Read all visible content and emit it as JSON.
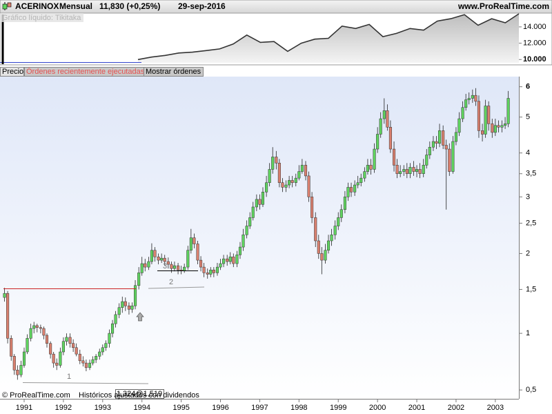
{
  "header": {
    "symbol": "ACERINOX",
    "period": "Mensual",
    "price": "11,830 (+0,25%)",
    "date": "29-sep-2016",
    "site": "www.ProRealTime.com"
  },
  "tabs": [
    "Precio",
    "Órdenes recientemente ejecutadas",
    "Mostrar órdenes"
  ],
  "footer": {
    "copyright": "© ProRealTime.com",
    "note": "Históricos ajustados con dividendos"
  },
  "chart_data": [
    {
      "type": "line",
      "title": "Gráfico líquido: Tikitaka",
      "color": "#333333",
      "values": [
        10000,
        10300,
        10500,
        10800,
        10900,
        11100,
        11300,
        11900,
        13000,
        12100,
        12200,
        11000,
        12000,
        12500,
        12600,
        14100,
        13800,
        14300,
        12800,
        13200,
        13800,
        13600,
        14700,
        15000,
        15500,
        14200,
        15000,
        14500,
        15600
      ],
      "ylim": [
        9600,
        15600
      ],
      "yticks": [
        {
          "value": 10000,
          "label": "10.000"
        },
        {
          "value": 12000,
          "label": "12.000"
        },
        {
          "value": 14000,
          "label": "14.000"
        }
      ]
    },
    {
      "type": "candlestick",
      "yscale": "log1p",
      "up_color": "#5fd35f",
      "down_color": "#d9806f",
      "x": [
        1990.5,
        1990.58,
        1990.67,
        1990.75,
        1990.83,
        1990.92,
        1991,
        1991.08,
        1991.17,
        1991.25,
        1991.33,
        1991.42,
        1991.5,
        1991.58,
        1991.67,
        1991.75,
        1991.83,
        1991.92,
        1992,
        1992.08,
        1992.17,
        1992.25,
        1992.33,
        1992.42,
        1992.5,
        1992.58,
        1992.67,
        1992.75,
        1992.83,
        1992.92,
        1993,
        1993.08,
        1993.17,
        1993.25,
        1993.33,
        1993.42,
        1993.5,
        1993.58,
        1993.67,
        1993.75,
        1993.83,
        1993.92,
        1994,
        1994.08,
        1994.17,
        1994.25,
        1994.33,
        1994.42,
        1994.5,
        1994.58,
        1994.67,
        1994.75,
        1994.83,
        1994.92,
        1995,
        1995.08,
        1995.17,
        1995.25,
        1995.33,
        1995.42,
        1995.5,
        1995.58,
        1995.67,
        1995.75,
        1995.83,
        1995.92,
        1996,
        1996.08,
        1996.17,
        1996.25,
        1996.33,
        1996.42,
        1996.5,
        1996.58,
        1996.67,
        1996.75,
        1996.83,
        1996.92,
        1997,
        1997.08,
        1997.17,
        1997.25,
        1997.33,
        1997.42,
        1997.5,
        1997.58,
        1997.67,
        1997.75,
        1997.83,
        1997.92,
        1998,
        1998.08,
        1998.17,
        1998.25,
        1998.33,
        1998.42,
        1998.5,
        1998.58,
        1998.67,
        1998.75,
        1998.83,
        1998.92,
        1999,
        1999.08,
        1999.17,
        1999.25,
        1999.33,
        1999.42,
        1999.5,
        1999.58,
        1999.67,
        1999.75,
        1999.83,
        1999.92,
        2000,
        2000.08,
        2000.17,
        2000.25,
        2000.33,
        2000.42,
        2000.5,
        2000.58,
        2000.67,
        2000.75,
        2000.83,
        2000.92,
        2001,
        2001.08,
        2001.17,
        2001.25,
        2001.33,
        2001.42,
        2001.5,
        2001.58,
        2001.67,
        2001.75,
        2001.83,
        2001.92,
        2002,
        2002.08,
        2002.17,
        2002.25,
        2002.33,
        2002.42,
        2002.5,
        2002.58,
        2002.67,
        2002.75,
        2002.83,
        2002.92,
        2003,
        2003.08,
        2003.17,
        2003.25,
        2003.33
      ],
      "open": [
        1.4,
        1.45,
        0.95,
        0.78,
        0.66,
        0.62,
        0.7,
        0.82,
        0.95,
        1.05,
        1.08,
        1.06,
        1.05,
        0.98,
        0.9,
        0.8,
        0.72,
        0.7,
        0.82,
        0.92,
        0.96,
        0.9,
        0.86,
        0.8,
        0.74,
        0.72,
        0.68,
        0.72,
        0.75,
        0.78,
        0.82,
        0.86,
        0.9,
        1.0,
        1.1,
        1.2,
        1.28,
        1.35,
        1.3,
        1.26,
        1.3,
        1.55,
        1.72,
        1.85,
        1.8,
        1.88,
        2.05,
        1.95,
        1.9,
        1.93,
        1.88,
        1.84,
        1.78,
        1.82,
        1.76,
        1.75,
        1.8,
        2.05,
        2.25,
        2.15,
        1.9,
        1.8,
        1.72,
        1.7,
        1.76,
        1.72,
        1.8,
        1.85,
        1.92,
        1.88,
        1.95,
        1.85,
        1.98,
        2.1,
        2.3,
        2.45,
        2.6,
        2.8,
        2.95,
        2.85,
        3.1,
        3.3,
        3.6,
        3.9,
        3.75,
        3.3,
        3.2,
        3.25,
        3.35,
        3.3,
        3.4,
        3.55,
        3.7,
        3.45,
        3.0,
        2.6,
        2.2,
        2.0,
        1.9,
        2.05,
        2.2,
        2.3,
        2.45,
        2.6,
        2.75,
        3.0,
        3.2,
        3.1,
        3.25,
        3.3,
        3.4,
        3.55,
        3.7,
        3.6,
        4.1,
        4.5,
        4.95,
        5.2,
        4.7,
        4.1,
        3.7,
        3.5,
        3.55,
        3.6,
        3.5,
        3.65,
        3.55,
        3.6,
        3.5,
        3.7,
        3.95,
        4.15,
        4.3,
        4.25,
        4.6,
        4.2,
        4.1,
        3.55,
        4.3,
        4.55,
        4.95,
        5.3,
        5.55,
        5.6,
        5.7,
        5.5,
        4.6,
        4.5,
        5.35,
        4.8,
        4.55,
        4.75,
        4.7,
        4.75,
        4.8
      ],
      "high": [
        1.52,
        1.48,
        0.98,
        0.8,
        0.7,
        0.74,
        0.86,
        0.99,
        1.1,
        1.12,
        1.1,
        1.09,
        1.07,
        1.0,
        0.92,
        0.82,
        0.76,
        0.86,
        0.96,
        1.0,
        1.0,
        0.94,
        0.9,
        0.84,
        0.78,
        0.75,
        0.75,
        0.78,
        0.8,
        0.85,
        0.89,
        0.93,
        1.04,
        1.14,
        1.24,
        1.33,
        1.41,
        1.4,
        1.34,
        1.34,
        1.62,
        1.8,
        1.95,
        1.92,
        1.95,
        2.16,
        2.1,
        2.0,
        2.0,
        1.98,
        1.94,
        1.88,
        1.88,
        1.86,
        1.82,
        1.85,
        2.12,
        2.4,
        2.32,
        2.2,
        1.96,
        1.86,
        1.78,
        1.8,
        1.8,
        1.86,
        1.92,
        1.98,
        1.98,
        2.02,
        2.0,
        2.04,
        2.18,
        2.4,
        2.55,
        2.7,
        2.9,
        3.05,
        3.05,
        3.2,
        3.45,
        3.75,
        4.15,
        4.05,
        3.85,
        3.4,
        3.35,
        3.45,
        3.45,
        3.5,
        3.7,
        3.85,
        3.8,
        3.55,
        3.1,
        2.7,
        2.3,
        2.1,
        2.15,
        2.3,
        2.4,
        2.55,
        2.7,
        2.85,
        3.12,
        3.3,
        3.3,
        3.35,
        3.45,
        3.5,
        3.65,
        3.85,
        3.85,
        4.25,
        4.7,
        5.15,
        5.6,
        5.4,
        4.9,
        4.3,
        3.85,
        3.7,
        3.7,
        3.75,
        3.75,
        3.8,
        3.7,
        3.75,
        3.85,
        4.1,
        4.3,
        4.45,
        4.45,
        4.8,
        4.75,
        4.35,
        4.25,
        4.45,
        4.7,
        5.15,
        5.5,
        5.75,
        5.8,
        5.9,
        5.95,
        5.7,
        4.8,
        5.55,
        5.5,
        4.95,
        4.95,
        4.9,
        4.9,
        5.0,
        5.85
      ],
      "low": [
        1.35,
        0.9,
        0.74,
        0.62,
        0.58,
        0.6,
        0.68,
        0.8,
        0.92,
        1.0,
        1.01,
        1.0,
        0.94,
        0.86,
        0.76,
        0.68,
        0.66,
        0.68,
        0.79,
        0.88,
        0.86,
        0.82,
        0.78,
        0.71,
        0.69,
        0.65,
        0.66,
        0.7,
        0.72,
        0.75,
        0.79,
        0.83,
        0.86,
        0.96,
        1.06,
        1.16,
        1.22,
        1.24,
        1.2,
        1.22,
        1.26,
        1.5,
        1.68,
        1.74,
        1.76,
        1.84,
        1.88,
        1.84,
        1.86,
        1.82,
        1.78,
        1.72,
        1.74,
        1.7,
        1.7,
        1.72,
        1.76,
        2.0,
        2.08,
        1.84,
        1.74,
        1.66,
        1.64,
        1.66,
        1.66,
        1.68,
        1.76,
        1.8,
        1.82,
        1.84,
        1.8,
        1.8,
        1.92,
        2.04,
        2.24,
        2.4,
        2.55,
        2.72,
        2.75,
        2.8,
        3.0,
        3.22,
        3.5,
        3.6,
        3.2,
        3.1,
        3.1,
        3.18,
        3.2,
        3.22,
        3.35,
        3.5,
        3.35,
        2.9,
        2.5,
        2.1,
        1.92,
        1.7,
        1.85,
        2.0,
        2.12,
        2.22,
        2.38,
        2.52,
        2.68,
        2.92,
        3.0,
        3.02,
        3.18,
        3.22,
        3.32,
        3.48,
        3.48,
        3.52,
        4.0,
        4.4,
        4.8,
        4.6,
        4.0,
        3.55,
        3.4,
        3.42,
        3.45,
        3.4,
        3.4,
        3.45,
        3.42,
        3.4,
        3.42,
        3.62,
        3.85,
        4.05,
        4.1,
        4.15,
        4.1,
        2.75,
        3.45,
        3.5,
        4.2,
        4.45,
        4.85,
        5.2,
        5.4,
        5.45,
        5.35,
        4.4,
        4.3,
        4.4,
        4.6,
        4.4,
        4.45,
        4.55,
        4.55,
        4.65,
        4.7
      ],
      "close": [
        1.45,
        0.95,
        0.78,
        0.66,
        0.62,
        0.7,
        0.82,
        0.95,
        1.05,
        1.08,
        1.06,
        1.05,
        0.98,
        0.9,
        0.8,
        0.72,
        0.7,
        0.82,
        0.92,
        0.96,
        0.9,
        0.86,
        0.8,
        0.74,
        0.72,
        0.68,
        0.72,
        0.75,
        0.78,
        0.82,
        0.86,
        0.9,
        1.0,
        1.1,
        1.2,
        1.28,
        1.35,
        1.3,
        1.26,
        1.3,
        1.55,
        1.72,
        1.85,
        1.8,
        1.88,
        2.05,
        1.95,
        1.9,
        1.93,
        1.88,
        1.84,
        1.78,
        1.82,
        1.76,
        1.75,
        1.8,
        2.05,
        2.25,
        2.15,
        1.9,
        1.8,
        1.72,
        1.7,
        1.76,
        1.72,
        1.8,
        1.85,
        1.92,
        1.88,
        1.95,
        1.85,
        1.98,
        2.1,
        2.3,
        2.45,
        2.6,
        2.8,
        2.95,
        2.85,
        3.1,
        3.3,
        3.6,
        3.9,
        3.75,
        3.3,
        3.2,
        3.25,
        3.35,
        3.3,
        3.4,
        3.55,
        3.7,
        3.45,
        3.0,
        2.6,
        2.2,
        2.0,
        1.9,
        2.05,
        2.2,
        2.3,
        2.45,
        2.6,
        2.75,
        3.0,
        3.2,
        3.1,
        3.25,
        3.3,
        3.4,
        3.55,
        3.7,
        3.6,
        4.1,
        4.5,
        4.95,
        5.2,
        4.7,
        4.1,
        3.7,
        3.5,
        3.55,
        3.6,
        3.5,
        3.65,
        3.55,
        3.6,
        3.5,
        3.7,
        3.95,
        4.15,
        4.3,
        4.25,
        4.6,
        4.2,
        4.1,
        3.55,
        4.3,
        4.55,
        4.95,
        5.3,
        5.55,
        5.6,
        5.7,
        5.5,
        4.6,
        4.5,
        5.35,
        4.8,
        4.55,
        4.75,
        4.7,
        4.75,
        4.8,
        5.6
      ],
      "xlim": [
        1990.385,
        2003.6
      ],
      "xticks": [
        1991,
        1992,
        1993,
        1994,
        1995,
        1996,
        1997,
        1998,
        1999,
        2000,
        2001,
        2002,
        2003
      ],
      "ylim": [
        0.434,
        6.37
      ],
      "yticks": [
        {
          "value": 0.5,
          "label": "0,5"
        },
        1,
        {
          "value": 1.5,
          "label": "1,5"
        },
        2,
        {
          "value": 2.5,
          "label": "2,5"
        },
        3,
        {
          "value": 3.5,
          "label": "3,5"
        },
        4,
        5,
        6
      ],
      "annotations": [
        "1",
        "2",
        "3",
        "1,324@1,519"
      ]
    }
  ]
}
